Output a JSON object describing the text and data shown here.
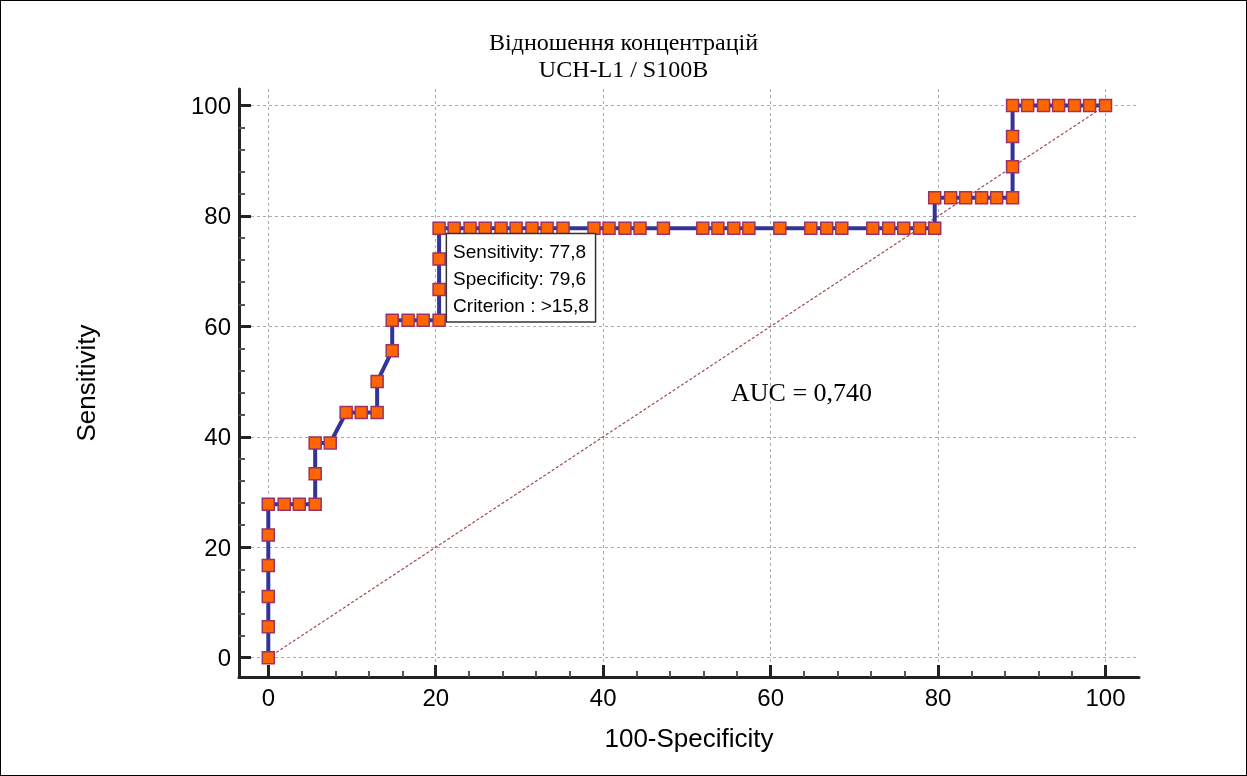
{
  "chart_data": {
    "type": "line",
    "title": "Відношення концентрацій\nUCH-L1 / S100B",
    "xlabel": "100-Specificity",
    "ylabel": "Sensitivity",
    "xlim": [
      -3.5,
      104
    ],
    "ylim": [
      -3.5,
      103
    ],
    "xticks": [
      0,
      20,
      40,
      60,
      80,
      100
    ],
    "yticks": [
      0,
      20,
      40,
      60,
      80,
      100
    ],
    "grid": true,
    "series": [
      {
        "color": "#333399",
        "marker": "square",
        "line_style": "solid",
        "x": [
          0,
          0,
          0,
          0,
          0,
          0,
          1.9,
          3.7,
          5.6,
          5.6,
          5.6,
          7.4,
          9.3,
          11.1,
          13.0,
          13.0,
          14.8,
          14.8,
          16.7,
          18.5,
          20.4,
          20.4,
          20.4,
          20.4,
          22.2,
          24.1,
          25.9,
          27.8,
          29.6,
          31.5,
          33.3,
          35.2,
          38.9,
          40.7,
          42.6,
          44.4,
          47.2,
          51.9,
          53.7,
          55.6,
          57.4,
          61.1,
          64.8,
          66.7,
          68.5,
          72.2,
          74.1,
          75.9,
          77.8,
          79.6,
          79.6,
          81.5,
          83.3,
          85.2,
          87.0,
          88.9,
          88.9,
          88.9,
          88.9,
          90.7,
          92.6,
          94.4,
          96.3,
          98.1,
          100
        ],
        "values": [
          0,
          5.6,
          11.1,
          16.7,
          22.2,
          27.8,
          27.8,
          27.8,
          27.8,
          33.3,
          38.9,
          38.9,
          44.4,
          44.4,
          44.4,
          50.0,
          55.6,
          61.1,
          61.1,
          61.1,
          61.1,
          66.7,
          72.2,
          77.8,
          77.8,
          77.8,
          77.8,
          77.8,
          77.8,
          77.8,
          77.8,
          77.8,
          77.8,
          77.8,
          77.8,
          77.8,
          77.8,
          77.8,
          77.8,
          77.8,
          77.8,
          77.8,
          77.8,
          77.8,
          77.8,
          77.8,
          77.8,
          77.8,
          77.8,
          77.8,
          83.3,
          83.3,
          83.3,
          83.3,
          83.3,
          83.3,
          88.9,
          94.4,
          100,
          100,
          100,
          100,
          100,
          100,
          100
        ],
        "colors": [
          "#ff6600",
          "#ff6600",
          "#ff6600",
          "#ff6600",
          "#ff6600",
          "#ff6600",
          "#ff6600",
          "#ff6600",
          "#ff6600",
          "#ff6600",
          "#ff6600",
          "#ff6600",
          "#ff6600",
          "#ff6600",
          "#ff6600",
          "#ff6600",
          "#ff6600",
          "#ff6600",
          "#ff6600",
          "#ff6600",
          "#ff6600",
          "#ff6600",
          "#ff6600",
          "#ff6600",
          "#ff6600",
          "#ff6600",
          "#ff6600",
          "#ff6600",
          "#ff6600",
          "#ff6600",
          "#ff6600",
          "#ff6600",
          "#ff6600",
          "#ff6600",
          "#ff6600",
          "#ff6600",
          "#ff6600",
          "#ff6600",
          "#ff6600",
          "#ff6600",
          "#ff6600",
          "#ff6600",
          "#ff6600",
          "#ff6600",
          "#ff6600",
          "#ff6600",
          "#ff6600",
          "#ff6600",
          "#ff6600",
          "#ff6600",
          "#ff6600",
          "#ff6600",
          "#ff6600",
          "#ff6600",
          "#ff6600",
          "#ff6600",
          "#ff6600",
          "#ff6600",
          "#ff6600",
          "#ff6600",
          "#ff6600",
          "#ff6600",
          "#ff6600",
          "#ff6600",
          "#ff6600"
        ]
      },
      {
        "color": "#a04848",
        "marker": "none",
        "line_style": "dotted",
        "x": [
          0,
          100
        ],
        "values": [
          0,
          100
        ]
      }
    ],
    "annotations": [
      {
        "text": "Sensitivity: 77,8\nSpecificity: 79,6\nCriterion : >15,8",
        "x": 20.4,
        "y": 77.8
      },
      "AUC = 0,740"
    ]
  }
}
